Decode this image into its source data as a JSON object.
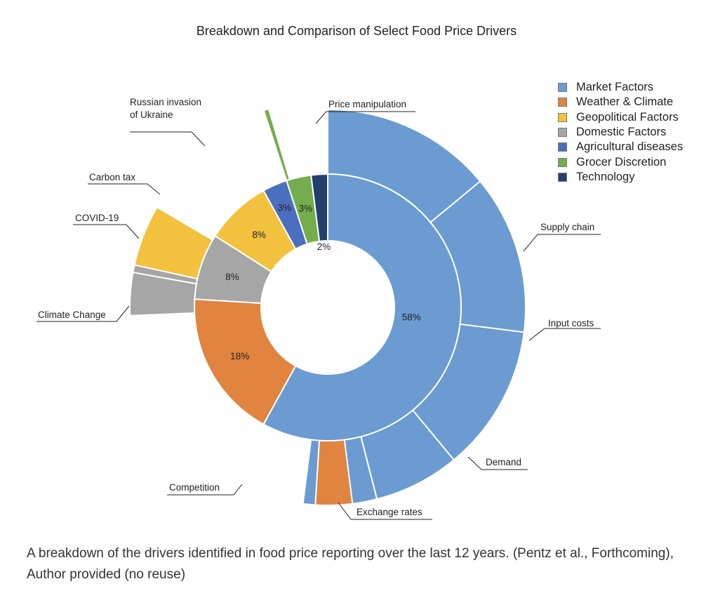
{
  "chart_data": {
    "type": "sunburst",
    "title": "Breakdown and Comparison of Select Food Price Drivers",
    "categories": [
      {
        "name": "Market Factors",
        "value": 58,
        "label": "58%",
        "color": "#6b9bd1"
      },
      {
        "name": "Weather & Climate",
        "value": 18,
        "label": "18%",
        "color": "#e0843f"
      },
      {
        "name": "Domestic Factors",
        "value": 8,
        "label": "8%",
        "color": "#a6a6a6"
      },
      {
        "name": "Geopolitical Factors",
        "value": 8,
        "label": "8%",
        "color": "#f2c23e"
      },
      {
        "name": "Agricultural diseases",
        "value": 3,
        "label": "3%",
        "color": "#4a6fc0"
      },
      {
        "name": "Grocer Discretion",
        "value": 3,
        "label": "3%",
        "color": "#74ad4c"
      },
      {
        "name": "Technology",
        "value": 2,
        "label": "2%",
        "color": "#23406e"
      }
    ],
    "subcategories": [
      {
        "name": "Supply chain",
        "parent": "Market Factors",
        "value": 14
      },
      {
        "name": "Input costs",
        "parent": "Market Factors",
        "value": 13
      },
      {
        "name": "Demand",
        "parent": "Market Factors",
        "value": 12
      },
      {
        "name": "Exchange rates",
        "parent": "Market Factors",
        "value": 7
      },
      {
        "name": "Competition",
        "parent": "Market Factors",
        "value": 6
      },
      {
        "name": "Climate Change",
        "parent": "Weather & Climate",
        "value": 3
      },
      {
        "name": "COVID-19",
        "parent": "Domestic Factors",
        "value": 3.5
      },
      {
        "name": "Carbon tax",
        "parent": "Domestic Factors",
        "value": 1
      },
      {
        "name": "Russian invasion of Ukraine",
        "label_lines": [
          "Russian invasion",
          "of Ukraine"
        ],
        "parent": "Geopolitical Factors",
        "value": 5
      },
      {
        "name": "Price manipulation",
        "parent": "Grocer Discretion",
        "value": 0.4
      }
    ],
    "legend": {
      "placement": "top-right",
      "items": [
        "Market Factors",
        "Weather & Climate",
        "Geopolitical Factors",
        "Domestic Factors",
        "Agricultural diseases",
        "Grocer Discretion",
        "Technology"
      ]
    }
  },
  "caption": "A breakdown of the drivers identified in food price reporting over the last 12 years. (Pentz et al., Forthcoming), Author provided (no reuse)"
}
